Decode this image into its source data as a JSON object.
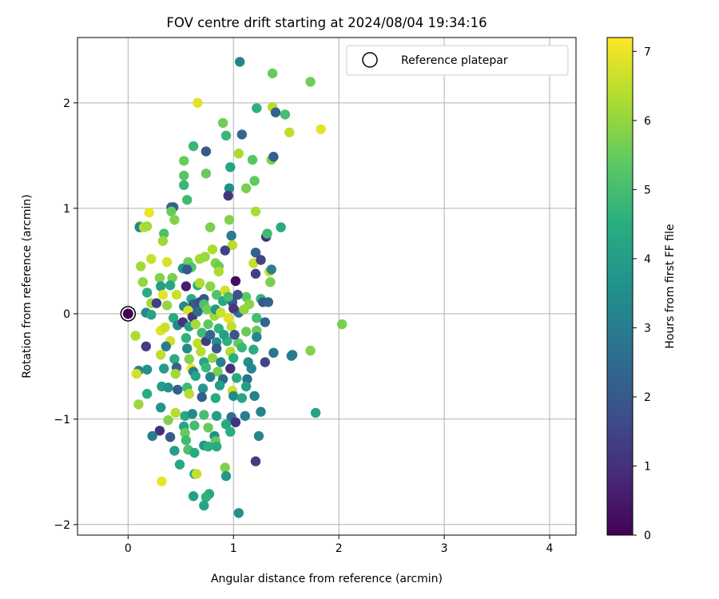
{
  "chart_data": {
    "type": "scatter",
    "title": "FOV centre drift starting at 2024/08/04 19:34:16",
    "xlabel": "Angular distance from reference (arcmin)",
    "ylabel": "Rotation from reference (arcmin)",
    "xlim": [
      -0.48,
      4.25
    ],
    "ylim": [
      -2.1,
      2.62
    ],
    "xticks": [
      "0",
      "1",
      "2",
      "3",
      "4"
    ],
    "yticks": [
      "−2",
      "−1",
      "0",
      "1",
      "2"
    ],
    "grid": true,
    "legend": {
      "position": "upper right",
      "label": "Reference platepar"
    },
    "reference_point": {
      "x": 0,
      "y": 0,
      "c": 0
    },
    "colorbar": {
      "label": "Hours from first FF file",
      "range": [
        0,
        7.2
      ],
      "ticks": [
        "0",
        "1",
        "2",
        "3",
        "4",
        "5",
        "6",
        "7"
      ],
      "colormap": "viridis"
    },
    "series": [
      {
        "points": [
          [
            1.06,
            2.39,
            3.2
          ],
          [
            1.37,
            2.28,
            5.5
          ],
          [
            1.73,
            2.2,
            5.6
          ],
          [
            0.66,
            2.0,
            6.9
          ],
          [
            1.22,
            1.95,
            4.6
          ],
          [
            1.37,
            1.96,
            6.4
          ],
          [
            1.4,
            1.91,
            2.2
          ],
          [
            1.49,
            1.89,
            5.0
          ],
          [
            0.9,
            1.81,
            5.6
          ],
          [
            1.08,
            1.7,
            2.4
          ],
          [
            0.93,
            1.69,
            4.8
          ],
          [
            1.53,
            1.72,
            6.5
          ],
          [
            1.83,
            1.75,
            6.9
          ],
          [
            0.62,
            1.59,
            4.8
          ],
          [
            0.74,
            1.54,
            2.0
          ],
          [
            1.05,
            1.52,
            6.3
          ],
          [
            1.18,
            1.46,
            5.3
          ],
          [
            1.36,
            1.46,
            5.8
          ],
          [
            1.38,
            1.49,
            2.1
          ],
          [
            0.53,
            1.45,
            5.5
          ],
          [
            0.97,
            1.39,
            4.2
          ],
          [
            0.74,
            1.33,
            5.5
          ],
          [
            0.53,
            1.31,
            5.3
          ],
          [
            0.53,
            1.22,
            4.8
          ],
          [
            1.2,
            1.26,
            5.4
          ],
          [
            1.12,
            1.19,
            5.7
          ],
          [
            0.96,
            1.19,
            3.6
          ],
          [
            0.95,
            1.12,
            1.2
          ],
          [
            0.56,
            1.08,
            4.9
          ],
          [
            0.41,
            1.01,
            2.3
          ],
          [
            0.43,
            1.01,
            2.1
          ],
          [
            0.2,
            0.96,
            7.0
          ],
          [
            0.41,
            0.97,
            5.5
          ],
          [
            1.21,
            0.97,
            6.3
          ],
          [
            0.44,
            0.89,
            5.8
          ],
          [
            0.96,
            0.89,
            5.8
          ],
          [
            0.11,
            0.83,
            5.6
          ],
          [
            0.11,
            0.82,
            3.2
          ],
          [
            0.15,
            0.82,
            6.4
          ],
          [
            0.18,
            0.83,
            6.2
          ],
          [
            0.78,
            0.82,
            5.7
          ],
          [
            1.45,
            0.82,
            4.4
          ],
          [
            0.34,
            0.76,
            5.1
          ],
          [
            0.98,
            0.74,
            3.0
          ],
          [
            1.31,
            0.73,
            1.0
          ],
          [
            1.32,
            0.76,
            4.9
          ],
          [
            0.33,
            0.69,
            6.1
          ],
          [
            0.99,
            0.65,
            6.4
          ],
          [
            0.68,
            0.52,
            6.2
          ],
          [
            0.57,
            0.49,
            5.6
          ],
          [
            0.22,
            0.52,
            6.6
          ],
          [
            0.37,
            0.49,
            6.8
          ],
          [
            0.73,
            0.54,
            6.1
          ],
          [
            0.8,
            0.61,
            6.3
          ],
          [
            0.92,
            0.6,
            1.4
          ],
          [
            1.21,
            0.58,
            2.2
          ],
          [
            1.19,
            0.48,
            6.6
          ],
          [
            1.26,
            0.51,
            1.5
          ],
          [
            0.12,
            0.45,
            6.2
          ],
          [
            0.83,
            0.48,
            5.8
          ],
          [
            0.86,
            0.45,
            5.5
          ],
          [
            0.6,
            0.44,
            5.2
          ],
          [
            0.52,
            0.43,
            3.8
          ],
          [
            0.56,
            0.42,
            2.0
          ],
          [
            0.86,
            0.4,
            6.3
          ],
          [
            1.34,
            0.4,
            6.6
          ],
          [
            1.36,
            0.42,
            3.2
          ],
          [
            1.21,
            0.38,
            1.4
          ],
          [
            0.14,
            0.3,
            6.0
          ],
          [
            0.3,
            0.34,
            5.8
          ],
          [
            0.42,
            0.34,
            5.7
          ],
          [
            0.31,
            0.26,
            4.0
          ],
          [
            0.4,
            0.27,
            4.3
          ],
          [
            0.55,
            0.26,
            0.6
          ],
          [
            0.66,
            0.27,
            4.5
          ],
          [
            0.68,
            0.29,
            6.3
          ],
          [
            0.78,
            0.26,
            5.9
          ],
          [
            1.02,
            0.31,
            0.2
          ],
          [
            1.35,
            0.3,
            5.7
          ],
          [
            0.18,
            0.2,
            4.5
          ],
          [
            0.33,
            0.18,
            6.9
          ],
          [
            0.46,
            0.18,
            6.6
          ],
          [
            0.6,
            0.14,
            4.4
          ],
          [
            0.72,
            0.14,
            2.0
          ],
          [
            0.84,
            0.18,
            5.2
          ],
          [
            0.92,
            0.22,
            6.7
          ],
          [
            1.12,
            0.16,
            5.4
          ],
          [
            1.26,
            0.14,
            4.7
          ],
          [
            0.22,
            0.1,
            6.2
          ],
          [
            0.27,
            0.1,
            1.4
          ],
          [
            0.37,
            0.08,
            6.0
          ],
          [
            0.53,
            0.07,
            3.4
          ],
          [
            0.62,
            0.09,
            2.0
          ],
          [
            0.68,
            0.11,
            1.7
          ],
          [
            0.72,
            0.09,
            5.1
          ],
          [
            0.9,
            0.12,
            4.3
          ],
          [
            0.99,
            0.11,
            2.1
          ],
          [
            1.15,
            0.09,
            5.9
          ],
          [
            1.28,
            0.11,
            1.9
          ],
          [
            1.33,
            0.11,
            2.3
          ],
          [
            0.17,
            0.01,
            3.3
          ],
          [
            0.22,
            -0.01,
            4.2
          ],
          [
            0.43,
            -0.04,
            4.4
          ],
          [
            0.57,
            0.03,
            6.8
          ],
          [
            0.61,
            -0.03,
            1.2
          ],
          [
            0.75,
            0.04,
            5.6
          ],
          [
            0.82,
            -0.02,
            6.1
          ],
          [
            0.95,
            -0.04,
            6.9
          ],
          [
            1.05,
            0.01,
            2.6
          ],
          [
            1.22,
            -0.04,
            5.0
          ],
          [
            1.3,
            -0.08,
            2.4
          ],
          [
            2.03,
            -0.1,
            5.7
          ],
          [
            0.31,
            -0.16,
            6.9
          ],
          [
            0.35,
            -0.13,
            6.6
          ],
          [
            0.47,
            -0.11,
            3.3
          ],
          [
            0.52,
            -0.08,
            1.1
          ],
          [
            0.58,
            -0.12,
            4.1
          ],
          [
            0.64,
            -0.1,
            6.2
          ],
          [
            0.76,
            -0.1,
            5.4
          ],
          [
            0.86,
            -0.14,
            4.6
          ],
          [
            0.98,
            -0.12,
            6.5
          ],
          [
            1.12,
            -0.17,
            5.5
          ],
          [
            1.22,
            -0.16,
            5.5
          ],
          [
            1.22,
            -0.22,
            3.3
          ],
          [
            0.07,
            -0.21,
            6.3
          ],
          [
            0.4,
            -0.26,
            6.7
          ],
          [
            0.55,
            -0.23,
            4.6
          ],
          [
            0.66,
            -0.28,
            6.5
          ],
          [
            0.74,
            -0.26,
            1.2
          ],
          [
            0.84,
            -0.27,
            3.5
          ],
          [
            0.94,
            -0.26,
            4.6
          ],
          [
            1.05,
            -0.28,
            5.5
          ],
          [
            0.17,
            -0.31,
            1.3
          ],
          [
            0.36,
            -0.31,
            3.0
          ],
          [
            0.56,
            -0.33,
            3.4
          ],
          [
            0.69,
            -0.36,
            6.4
          ],
          [
            0.84,
            -0.33,
            2.0
          ],
          [
            0.97,
            -0.36,
            6.4
          ],
          [
            1.08,
            -0.32,
            4.8
          ],
          [
            1.38,
            -0.37,
            2.8
          ],
          [
            1.55,
            -0.4,
            3.2
          ],
          [
            1.56,
            -0.39,
            3.0
          ],
          [
            1.73,
            -0.35,
            5.8
          ],
          [
            0.31,
            -0.39,
            6.5
          ],
          [
            0.44,
            -0.43,
            4.5
          ],
          [
            0.58,
            -0.43,
            5.8
          ],
          [
            0.72,
            -0.46,
            4.2
          ],
          [
            0.8,
            -0.42,
            6.0
          ],
          [
            0.88,
            -0.46,
            3.2
          ],
          [
            1.0,
            -0.42,
            4.5
          ],
          [
            1.14,
            -0.46,
            3.5
          ],
          [
            1.3,
            -0.46,
            1.5
          ],
          [
            0.34,
            -0.52,
            3.9
          ],
          [
            0.46,
            -0.51,
            2.2
          ],
          [
            0.6,
            -0.52,
            7.0
          ],
          [
            0.62,
            -0.55,
            3.0
          ],
          [
            0.74,
            -0.51,
            4.8
          ],
          [
            0.85,
            -0.55,
            5.7
          ],
          [
            0.97,
            -0.52,
            1.0
          ],
          [
            1.17,
            -0.52,
            3.3
          ],
          [
            0.1,
            -0.54,
            3.2
          ],
          [
            0.18,
            -0.53,
            3.6
          ],
          [
            0.45,
            -0.57,
            6.2
          ],
          [
            0.64,
            -0.59,
            4.2
          ],
          [
            0.78,
            -0.6,
            3.1
          ],
          [
            0.9,
            -0.62,
            2.4
          ],
          [
            1.03,
            -0.61,
            4.4
          ],
          [
            1.13,
            -0.62,
            2.7
          ],
          [
            0.08,
            -0.57,
            6.7
          ],
          [
            0.32,
            -0.69,
            4.0
          ],
          [
            0.38,
            -0.7,
            3.6
          ],
          [
            0.47,
            -0.72,
            2.2
          ],
          [
            0.56,
            -0.7,
            4.9
          ],
          [
            0.71,
            -0.71,
            3.8
          ],
          [
            0.87,
            -0.68,
            4.0
          ],
          [
            0.99,
            -0.73,
            6.7
          ],
          [
            1.12,
            -0.69,
            4.0
          ],
          [
            1.2,
            -0.78,
            3.2
          ],
          [
            0.18,
            -0.76,
            4.4
          ],
          [
            0.58,
            -0.76,
            6.4
          ],
          [
            0.7,
            -0.79,
            2.1
          ],
          [
            0.83,
            -0.8,
            4.4
          ],
          [
            1.0,
            -0.78,
            3.4
          ],
          [
            1.08,
            -0.8,
            4.2
          ],
          [
            0.1,
            -0.86,
            6.1
          ],
          [
            0.31,
            -0.89,
            3.7
          ],
          [
            0.45,
            -0.94,
            6.4
          ],
          [
            0.54,
            -0.97,
            4.3
          ],
          [
            0.61,
            -0.95,
            3.4
          ],
          [
            0.72,
            -0.96,
            5.0
          ],
          [
            0.84,
            -0.97,
            4.0
          ],
          [
            0.98,
            -0.98,
            2.6
          ],
          [
            1.11,
            -0.97,
            3.1
          ],
          [
            1.26,
            -0.93,
            3.2
          ],
          [
            1.78,
            -0.94,
            4.2
          ],
          [
            0.38,
            -1.01,
            5.8
          ],
          [
            0.53,
            -1.07,
            4.2
          ],
          [
            0.63,
            -1.06,
            5.0
          ],
          [
            0.76,
            -1.08,
            5.5
          ],
          [
            0.93,
            -1.05,
            4.3
          ],
          [
            1.02,
            -1.03,
            1.1
          ],
          [
            0.3,
            -1.11,
            1.0
          ],
          [
            0.54,
            -1.13,
            5.5
          ],
          [
            0.82,
            -1.16,
            3.6
          ],
          [
            0.97,
            -1.12,
            4.5
          ],
          [
            0.23,
            -1.16,
            3.0
          ],
          [
            0.4,
            -1.17,
            2.0
          ],
          [
            0.55,
            -1.2,
            4.9
          ],
          [
            0.83,
            -1.21,
            5.5
          ],
          [
            1.24,
            -1.16,
            3.3
          ],
          [
            0.72,
            -1.25,
            3.8
          ],
          [
            0.84,
            -1.26,
            4.4
          ],
          [
            0.57,
            -1.29,
            5.1
          ],
          [
            0.44,
            -1.3,
            4.0
          ],
          [
            0.63,
            -1.32,
            4.4
          ],
          [
            0.76,
            -1.26,
            4.5
          ],
          [
            1.21,
            -1.4,
            1.3
          ],
          [
            0.49,
            -1.43,
            4.3
          ],
          [
            0.92,
            -1.46,
            5.8
          ],
          [
            0.63,
            -1.52,
            4.4
          ],
          [
            0.65,
            -1.52,
            6.6
          ],
          [
            0.93,
            -1.54,
            3.8
          ],
          [
            0.32,
            -1.59,
            7.0
          ],
          [
            0.77,
            -1.71,
            4.3
          ],
          [
            0.74,
            -1.74,
            4.6
          ],
          [
            0.62,
            -1.73,
            4.0
          ],
          [
            0.72,
            -1.82,
            4.2
          ],
          [
            1.05,
            -1.89,
            3.6
          ],
          [
            0.83,
            0.04,
            3.8
          ],
          [
            0.66,
            0.02,
            2.5
          ],
          [
            0.88,
            0.01,
            6.6
          ],
          [
            1.0,
            0.05,
            1.2
          ],
          [
            0.95,
            0.16,
            5.0
          ],
          [
            1.04,
            0.18,
            1.8
          ],
          [
            1.1,
            0.04,
            6.0
          ],
          [
            0.7,
            -0.18,
            4.9
          ],
          [
            0.78,
            -0.2,
            2.3
          ],
          [
            0.91,
            -0.2,
            4.1
          ],
          [
            1.01,
            -0.2,
            1.9
          ],
          [
            1.19,
            -0.34,
            4.5
          ]
        ]
      }
    ]
  }
}
